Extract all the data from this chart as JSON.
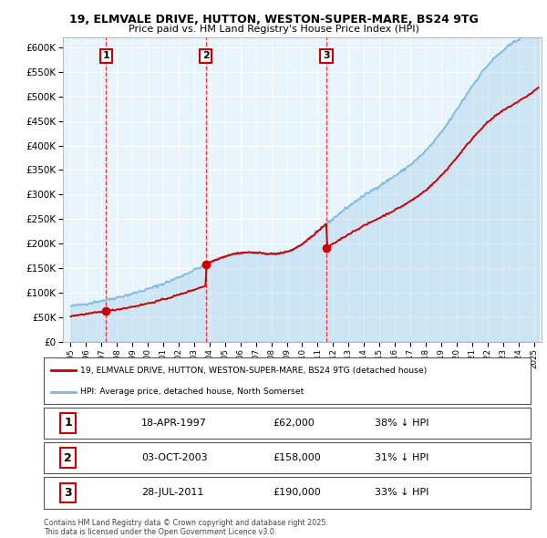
{
  "title_line1": "19, ELMVALE DRIVE, HUTTON, WESTON-SUPER-MARE, BS24 9TG",
  "title_line2": "Price paid vs. HM Land Registry's House Price Index (HPI)",
  "ylabel_ticks": [
    "£0",
    "£50K",
    "£100K",
    "£150K",
    "£200K",
    "£250K",
    "£300K",
    "£350K",
    "£400K",
    "£450K",
    "£500K",
    "£550K",
    "£600K"
  ],
  "ytick_values": [
    0,
    50000,
    100000,
    150000,
    200000,
    250000,
    300000,
    350000,
    400000,
    450000,
    500000,
    550000,
    600000
  ],
  "xlim": [
    1994.5,
    2025.5
  ],
  "ylim": [
    0,
    620000
  ],
  "sale_dates": [
    1997.29,
    2003.75,
    2011.57
  ],
  "sale_prices": [
    62000,
    158000,
    190000
  ],
  "sale_labels": [
    "1",
    "2",
    "3"
  ],
  "legend_line1": "19, ELMVALE DRIVE, HUTTON, WESTON-SUPER-MARE, BS24 9TG (detached house)",
  "legend_line2": "HPI: Average price, detached house, North Somerset",
  "table_rows": [
    {
      "num": "1",
      "date": "18-APR-1997",
      "price": "£62,000",
      "hpi": "38% ↓ HPI"
    },
    {
      "num": "2",
      "date": "03-OCT-2003",
      "price": "£158,000",
      "hpi": "31% ↓ HPI"
    },
    {
      "num": "3",
      "date": "28-JUL-2011",
      "price": "£190,000",
      "hpi": "33% ↓ HPI"
    }
  ],
  "footnote": "Contains HM Land Registry data © Crown copyright and database right 2025.\nThis data is licensed under the Open Government Licence v3.0.",
  "hpi_color": "#7ab8d9",
  "sale_color": "#cc0000",
  "bg_color": "#ddeef8",
  "plot_bg": "#e8f4fc"
}
